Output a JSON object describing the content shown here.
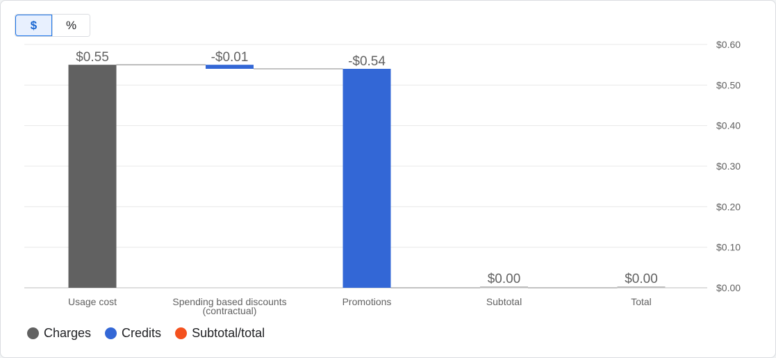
{
  "toggle": {
    "dollar_label": "$",
    "percent_label": "%",
    "selected": "$"
  },
  "colors": {
    "charges": "#616161",
    "credits": "#3367d6",
    "subtotal": "#f4511e",
    "connector": "#9e9e9e",
    "grid": "#e8e8e8"
  },
  "chart_data": {
    "type": "bar",
    "subtype": "waterfall",
    "categories": [
      "Usage cost",
      "Spending based discounts (contractual)",
      "Promotions",
      "Subtotal",
      "Total"
    ],
    "category_lines": [
      [
        "Usage cost"
      ],
      [
        "Spending based discounts",
        "(contractual)"
      ],
      [
        "Promotions"
      ],
      [
        "Subtotal"
      ],
      [
        "Total"
      ]
    ],
    "values": [
      0.55,
      -0.01,
      -0.54,
      0.0,
      0.0
    ],
    "kinds": [
      "charges",
      "credits",
      "credits",
      "subtotal",
      "subtotal"
    ],
    "value_labels": [
      "$0.55",
      "-$0.01",
      "-$0.54",
      "$0.00",
      "$0.00"
    ],
    "y_ticks": [
      "$0.00",
      "$0.10",
      "$0.20",
      "$0.30",
      "$0.40",
      "$0.50",
      "$0.60"
    ],
    "ylim": [
      0,
      0.6
    ],
    "y_axis_side": "right",
    "grid": true,
    "legend": [
      {
        "name": "Charges",
        "color": "#616161"
      },
      {
        "name": "Credits",
        "color": "#3367d6"
      },
      {
        "name": "Subtotal/total",
        "color": "#f4511e"
      }
    ],
    "legend_position": "bottom-left"
  }
}
